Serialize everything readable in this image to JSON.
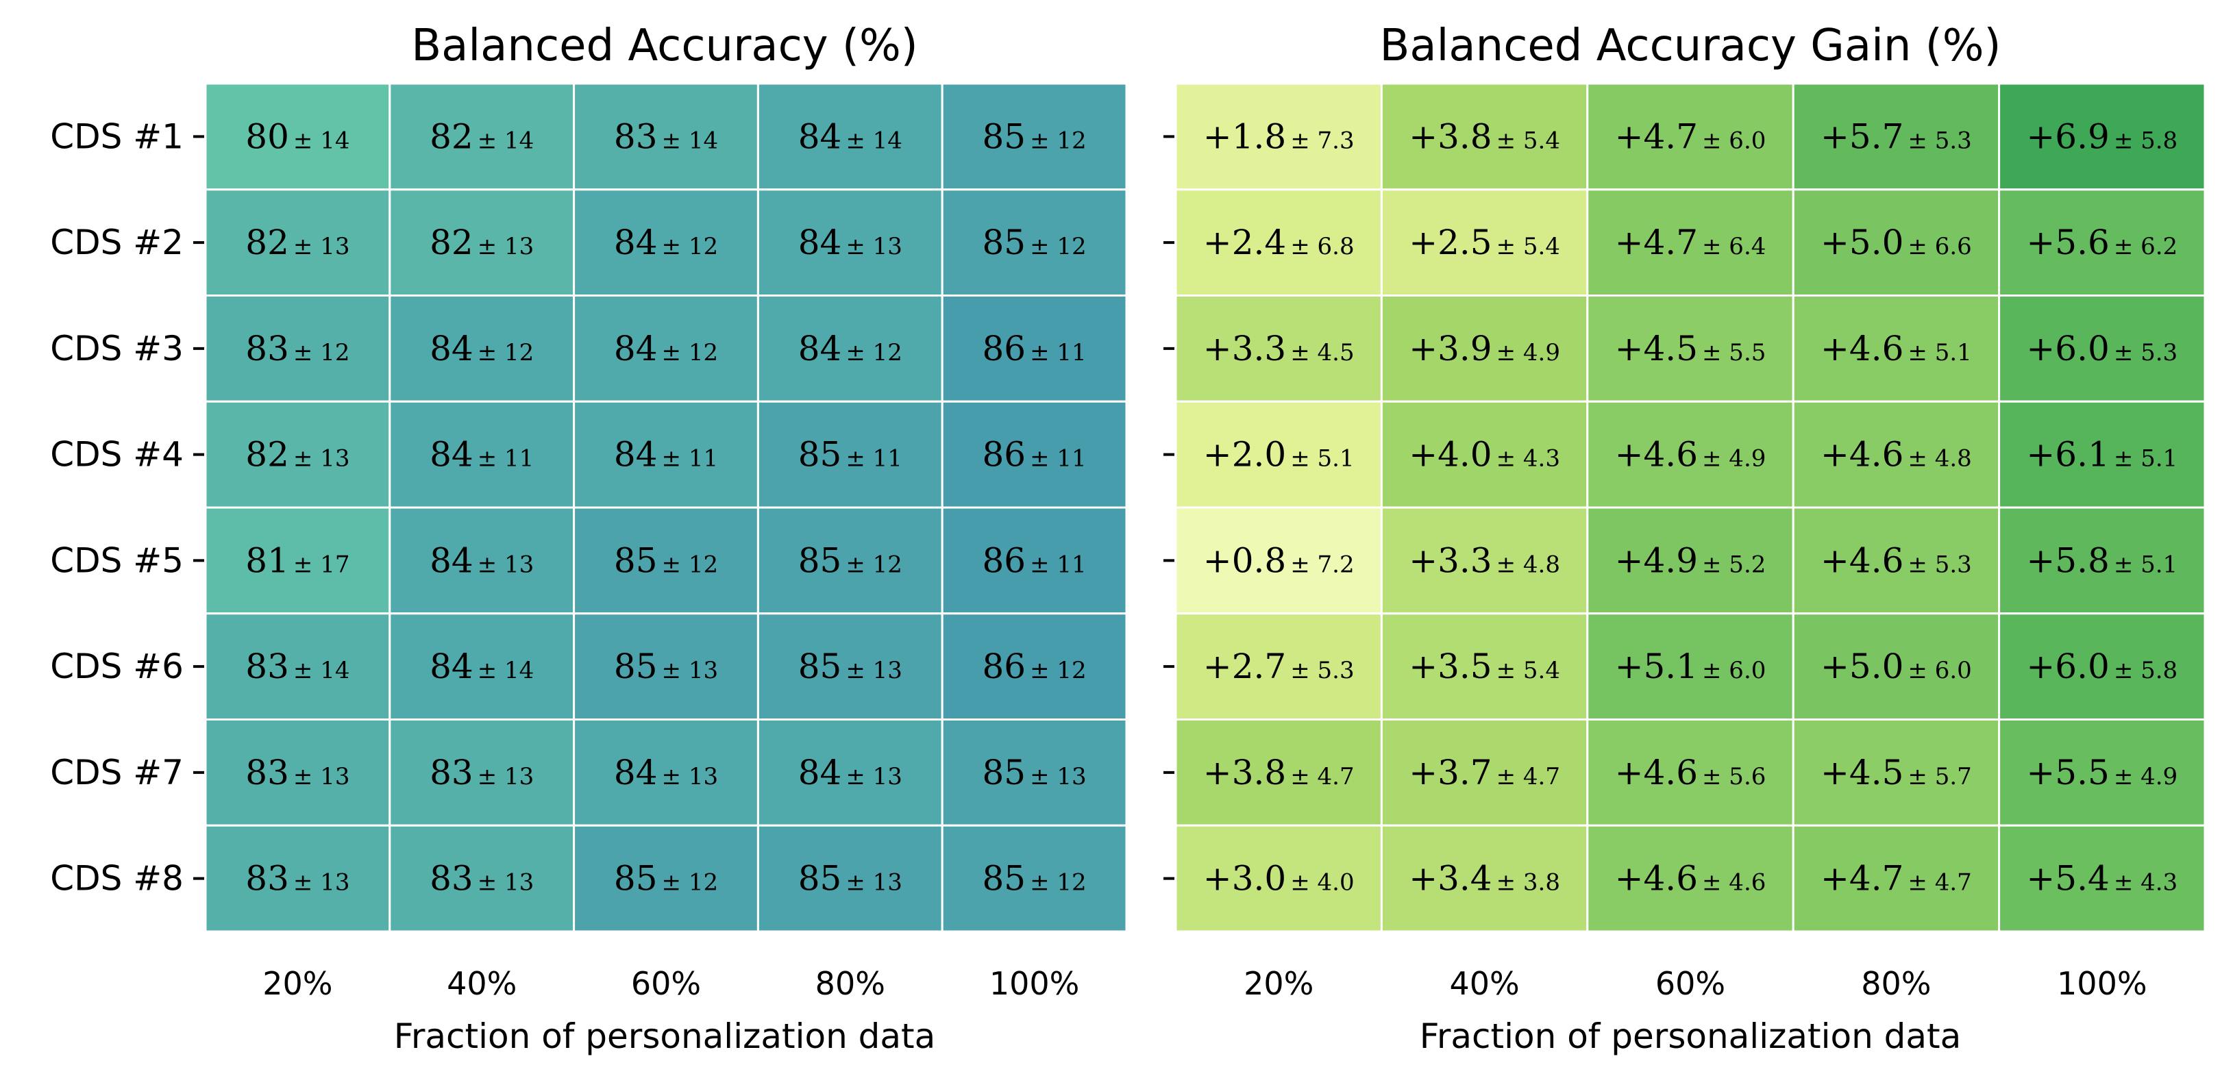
{
  "chart_data": [
    {
      "type": "heatmap",
      "title": "Balanced Accuracy (%)",
      "xlabel": "Fraction of personalization data",
      "ylabel": "",
      "categories": [
        "20%",
        "40%",
        "60%",
        "80%",
        "100%"
      ],
      "rows": [
        "CDS #1",
        "CDS #2",
        "CDS #3",
        "CDS #4",
        "CDS #5",
        "CDS #6",
        "CDS #7",
        "CDS #8"
      ],
      "values": [
        [
          80,
          82,
          83,
          84,
          85
        ],
        [
          82,
          82,
          84,
          84,
          85
        ],
        [
          83,
          84,
          84,
          84,
          86
        ],
        [
          82,
          84,
          84,
          85,
          86
        ],
        [
          81,
          84,
          85,
          85,
          86
        ],
        [
          83,
          84,
          85,
          85,
          86
        ],
        [
          83,
          83,
          84,
          84,
          85
        ],
        [
          83,
          83,
          85,
          85,
          85
        ]
      ],
      "std": [
        [
          14,
          14,
          14,
          14,
          12
        ],
        [
          13,
          13,
          12,
          13,
          12
        ],
        [
          12,
          12,
          12,
          12,
          11
        ],
        [
          13,
          11,
          11,
          11,
          11
        ],
        [
          17,
          13,
          12,
          12,
          11
        ],
        [
          14,
          14,
          13,
          13,
          12
        ],
        [
          13,
          13,
          13,
          13,
          13
        ],
        [
          13,
          13,
          12,
          13,
          12
        ]
      ],
      "labels": [
        [
          "80",
          "82",
          "83",
          "84",
          "85"
        ],
        [
          "82",
          "82",
          "84",
          "84",
          "85"
        ],
        [
          "83",
          "84",
          "84",
          "84",
          "86"
        ],
        [
          "82",
          "84",
          "84",
          "85",
          "86"
        ],
        [
          "81",
          "84",
          "85",
          "85",
          "86"
        ],
        [
          "83",
          "84",
          "85",
          "85",
          "86"
        ],
        [
          "83",
          "83",
          "84",
          "84",
          "85"
        ],
        [
          "83",
          "83",
          "85",
          "85",
          "85"
        ]
      ],
      "std_labels": [
        [
          "± 14",
          "± 14",
          "± 14",
          "± 14",
          "± 12"
        ],
        [
          "± 13",
          "± 13",
          "± 12",
          "± 13",
          "± 12"
        ],
        [
          "± 12",
          "± 12",
          "± 12",
          "± 12",
          "± 11"
        ],
        [
          "± 13",
          "± 11",
          "± 11",
          "± 11",
          "± 11"
        ],
        [
          "± 17",
          "± 13",
          "± 12",
          "± 12",
          "± 11"
        ],
        [
          "± 14",
          "± 14",
          "± 13",
          "± 13",
          "± 12"
        ],
        [
          "± 13",
          "± 13",
          "± 13",
          "± 13",
          "± 13"
        ],
        [
          "± 13",
          "± 13",
          "± 12",
          "± 13",
          "± 12"
        ]
      ],
      "color_range": [
        80,
        86
      ],
      "colors": [
        "#63c3a8",
        "#479dac"
      ]
    },
    {
      "type": "heatmap",
      "title": "Balanced Accuracy Gain (%)",
      "xlabel": "Fraction of personalization data",
      "ylabel": "",
      "categories": [
        "20%",
        "40%",
        "60%",
        "80%",
        "100%"
      ],
      "rows": [
        "CDS #1",
        "CDS #2",
        "CDS #3",
        "CDS #4",
        "CDS #5",
        "CDS #6",
        "CDS #7",
        "CDS #8"
      ],
      "values": [
        [
          1.8,
          3.8,
          4.7,
          5.7,
          6.9
        ],
        [
          2.4,
          2.5,
          4.7,
          5.0,
          5.6
        ],
        [
          3.3,
          3.9,
          4.5,
          4.6,
          6.0
        ],
        [
          2.0,
          4.0,
          4.6,
          4.6,
          6.1
        ],
        [
          0.8,
          3.3,
          4.9,
          4.6,
          5.8
        ],
        [
          2.7,
          3.5,
          5.1,
          5.0,
          6.0
        ],
        [
          3.8,
          3.7,
          4.6,
          4.5,
          5.5
        ],
        [
          3.0,
          3.4,
          4.6,
          4.7,
          5.4
        ]
      ],
      "std": [
        [
          7.3,
          5.4,
          6.0,
          5.3,
          5.8
        ],
        [
          6.8,
          5.4,
          6.4,
          6.6,
          6.2
        ],
        [
          4.5,
          4.9,
          5.5,
          5.1,
          5.3
        ],
        [
          5.1,
          4.3,
          4.9,
          4.8,
          5.1
        ],
        [
          7.2,
          4.8,
          5.2,
          5.3,
          5.1
        ],
        [
          5.3,
          5.4,
          6.0,
          6.0,
          5.8
        ],
        [
          4.7,
          4.7,
          5.6,
          5.7,
          4.9
        ],
        [
          4.0,
          3.8,
          4.6,
          4.7,
          4.3
        ]
      ],
      "labels": [
        [
          "+1.8",
          "+3.8",
          "+4.7",
          "+5.7",
          "+6.9"
        ],
        [
          "+2.4",
          "+2.5",
          "+4.7",
          "+5.0",
          "+5.6"
        ],
        [
          "+3.3",
          "+3.9",
          "+4.5",
          "+4.6",
          "+6.0"
        ],
        [
          "+2.0",
          "+4.0",
          "+4.6",
          "+4.6",
          "+6.1"
        ],
        [
          "+0.8",
          "+3.3",
          "+4.9",
          "+4.6",
          "+5.8"
        ],
        [
          "+2.7",
          "+3.5",
          "+5.1",
          "+5.0",
          "+6.0"
        ],
        [
          "+3.8",
          "+3.7",
          "+4.6",
          "+4.5",
          "+5.5"
        ],
        [
          "+3.0",
          "+3.4",
          "+4.6",
          "+4.7",
          "+5.4"
        ]
      ],
      "std_labels": [
        [
          "± 7.3",
          "± 5.4",
          "± 6.0",
          "± 5.3",
          "± 5.8"
        ],
        [
          "± 6.8",
          "± 5.4",
          "± 6.4",
          "± 6.6",
          "± 6.2"
        ],
        [
          "± 4.5",
          "± 4.9",
          "± 5.5",
          "± 5.1",
          "± 5.3"
        ],
        [
          "± 5.1",
          "± 4.3",
          "± 4.9",
          "± 4.8",
          "± 5.1"
        ],
        [
          "± 7.2",
          "± 4.8",
          "± 5.2",
          "± 5.3",
          "± 5.1"
        ],
        [
          "± 5.3",
          "± 5.4",
          "± 6.0",
          "± 6.0",
          "± 5.8"
        ],
        [
          "± 4.7",
          "± 4.7",
          "± 5.6",
          "± 5.7",
          "± 4.9"
        ],
        [
          "± 4.0",
          "± 3.8",
          "± 4.6",
          "± 4.7",
          "± 4.3"
        ]
      ],
      "color_range": [
        0.8,
        6.9
      ],
      "colors": [
        "#eef9b4",
        "#dcef8e",
        "#a6d76a",
        "#6cbf5f",
        "#3ea856"
      ]
    }
  ]
}
